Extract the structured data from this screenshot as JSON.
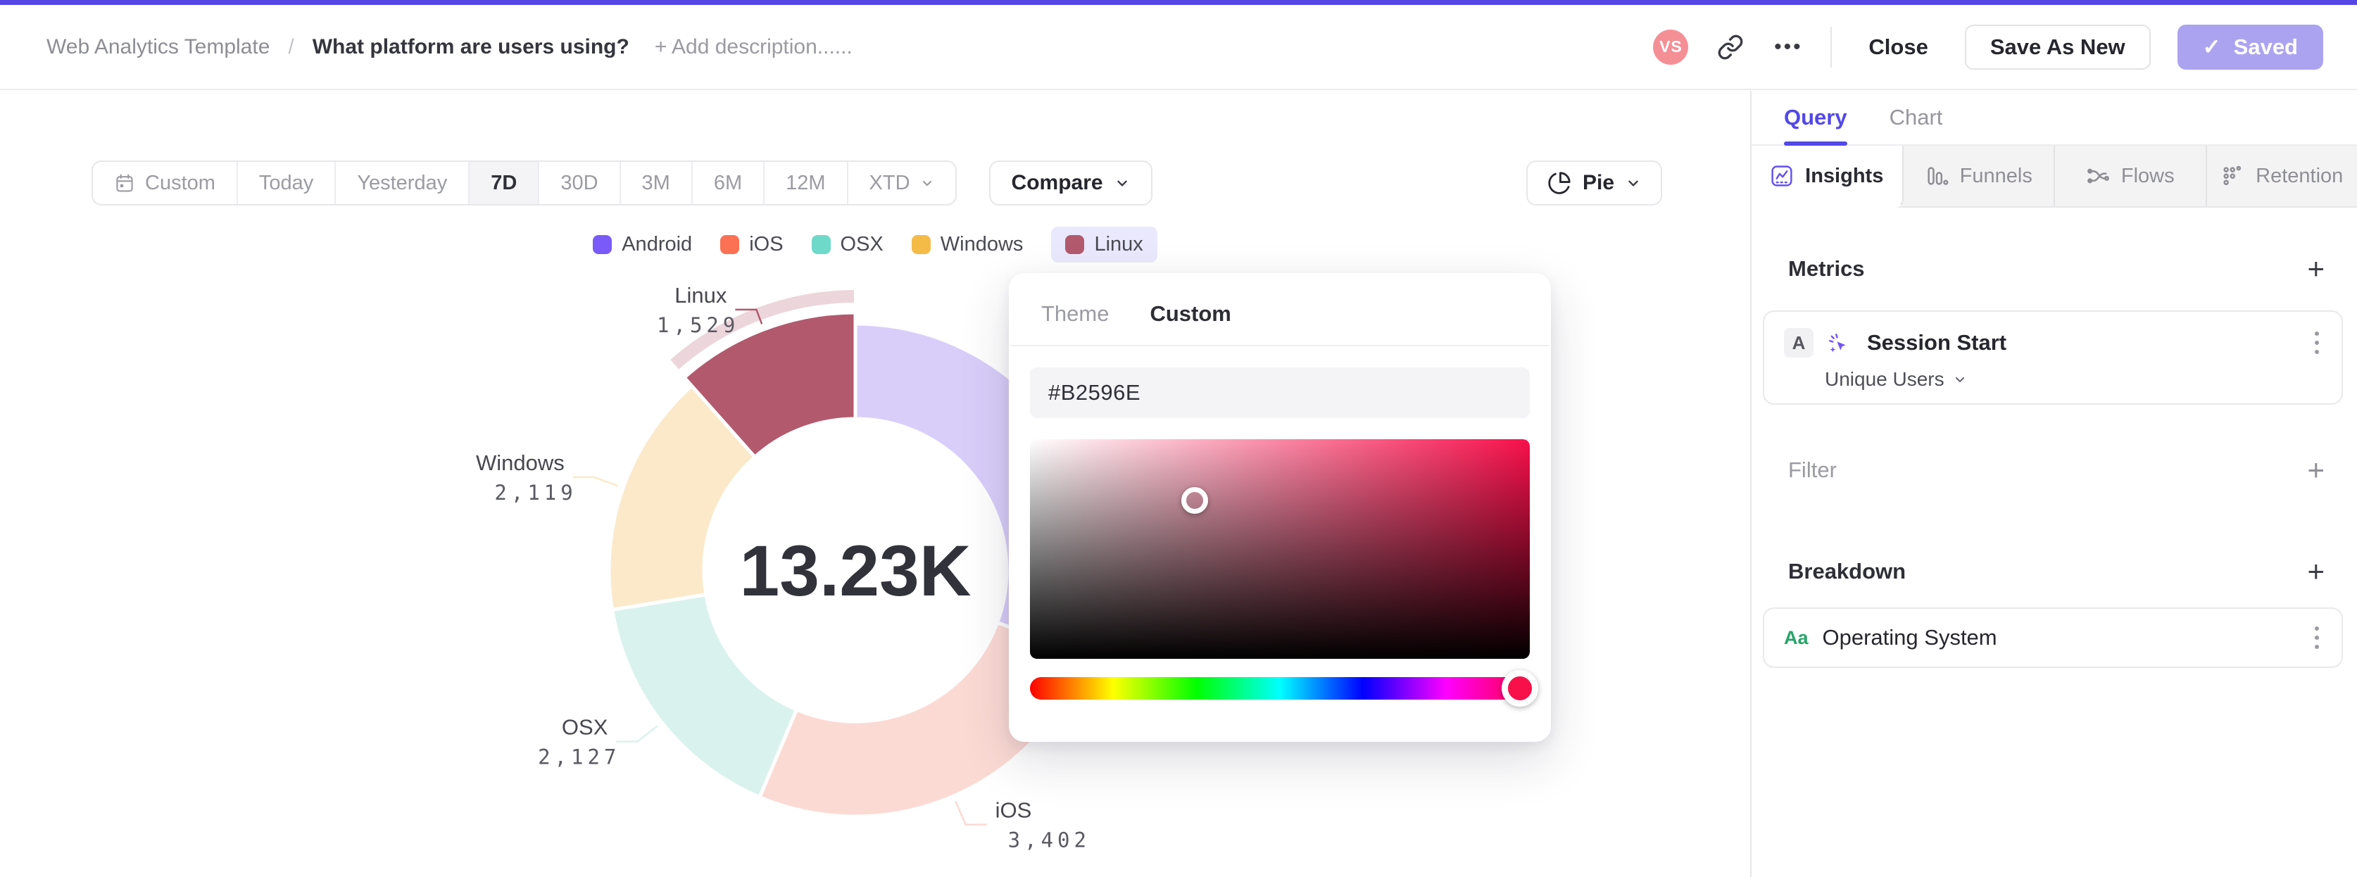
{
  "accent_color": "#5646E5",
  "header": {
    "project": "Web Analytics Template",
    "separator": "/",
    "title": "What platform are users using?",
    "add_description": "+ Add description......",
    "avatar_initials": "VS",
    "avatar_color": "#F58F96",
    "close_label": "Close",
    "save_as_new_label": "Save As New",
    "saved_label": "Saved",
    "saved_check": "✓"
  },
  "toolbar": {
    "ranges": [
      {
        "label": "Custom",
        "icon": "calendar"
      },
      {
        "label": "Today"
      },
      {
        "label": "Yesterday"
      },
      {
        "label": "7D"
      },
      {
        "label": "30D"
      },
      {
        "label": "3M"
      },
      {
        "label": "6M"
      },
      {
        "label": "12M"
      },
      {
        "label": "XTD",
        "chevron": true
      }
    ],
    "selected": "7D",
    "compare_label": "Compare",
    "chart_type_label": "Pie"
  },
  "chart_data": {
    "type": "pie",
    "style": "donut",
    "center_label": "13.23K",
    "total": 13230,
    "legend_position": "top",
    "highlighted_series": "Linux",
    "series": [
      {
        "name": "Android",
        "value": 4053,
        "value_estimated": true,
        "label_visible": false,
        "legend_color": "#7A5AF8",
        "slice_color": "#D9CEFA"
      },
      {
        "name": "iOS",
        "value": 3402,
        "display_value": "3,402",
        "label_visible": true,
        "legend_color": "#FC7053",
        "slice_color": "#FCDAD4"
      },
      {
        "name": "OSX",
        "value": 2127,
        "display_value": "2,127",
        "label_visible": true,
        "legend_color": "#6FD9C9",
        "slice_color": "#DAF2ED"
      },
      {
        "name": "Windows",
        "value": 2119,
        "display_value": "2,119",
        "label_visible": true,
        "legend_color": "#F5BB47",
        "slice_color": "#FBE9CA"
      },
      {
        "name": "Linux",
        "value": 1529,
        "display_value": "1,529",
        "label_visible": true,
        "highlighted": true,
        "legend_color": "#B2596E",
        "slice_color": "#B2596E",
        "highlight_band_color": "#ECD5DB"
      }
    ]
  },
  "color_picker": {
    "tabs": [
      "Theme",
      "Custom"
    ],
    "active_tab": "Custom",
    "hex_value": "#B2596E",
    "hue_color": "#F8104B",
    "selector_left_pct": 33,
    "selector_top_pct": 28,
    "hue_handle_pct": 98
  },
  "sidebar": {
    "tabs": [
      {
        "label": "Query",
        "active": true
      },
      {
        "label": "Chart",
        "active": false
      }
    ],
    "modes": [
      {
        "label": "Insights",
        "active": true
      },
      {
        "label": "Funnels",
        "active": false
      },
      {
        "label": "Flows",
        "active": false
      },
      {
        "label": "Retention",
        "active": false
      }
    ],
    "metrics": {
      "heading": "Metrics",
      "add": "+",
      "items": [
        {
          "badge": "A",
          "event": "Session Start",
          "measure": "Unique Users"
        }
      ]
    },
    "filter": {
      "heading": "Filter",
      "add": "+"
    },
    "breakdown": {
      "heading": "Breakdown",
      "add": "+",
      "items": [
        {
          "badge": "Aa",
          "property": "Operating System"
        }
      ]
    }
  }
}
